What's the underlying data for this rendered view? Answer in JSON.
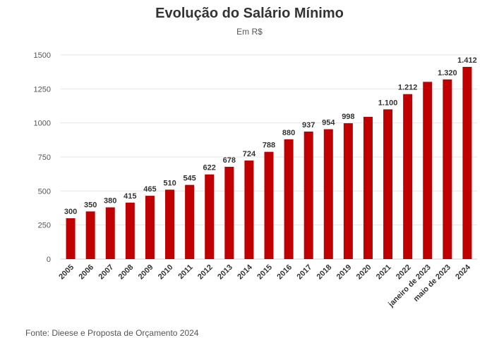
{
  "chart_data": {
    "type": "bar",
    "title": "Evolução do Salário Mínimo",
    "subtitle": "Em R$",
    "categories": [
      "2005",
      "2006",
      "2007",
      "2008",
      "2009",
      "2010",
      "2011",
      "2012",
      "2013",
      "2014",
      "2015",
      "2016",
      "2017",
      "2018",
      "2019",
      "2020",
      "2021",
      "2022",
      "janeiro de 2023",
      "maio de 2023",
      "2024"
    ],
    "values": [
      300,
      350,
      380,
      415,
      465,
      510,
      545,
      622,
      678,
      724,
      788,
      880,
      937,
      954,
      998,
      1045,
      1100,
      1212,
      1302,
      1320,
      1412
    ],
    "data_labels": [
      "300",
      "350",
      "380",
      "415",
      "465",
      "510",
      "545",
      "622",
      "678",
      "724",
      "788",
      "880",
      "937",
      "954",
      "998",
      "",
      "1.100",
      "1.212",
      "",
      "1.320",
      "1.412"
    ],
    "yticks": [
      "0",
      "250",
      "500",
      "750",
      "1000",
      "1250",
      "1500"
    ],
    "ylim": [
      0,
      1500
    ],
    "grid": true,
    "bar_color": "#c00000",
    "source": "Fonte: Dieese e Proposta de Orçamento 2024"
  }
}
